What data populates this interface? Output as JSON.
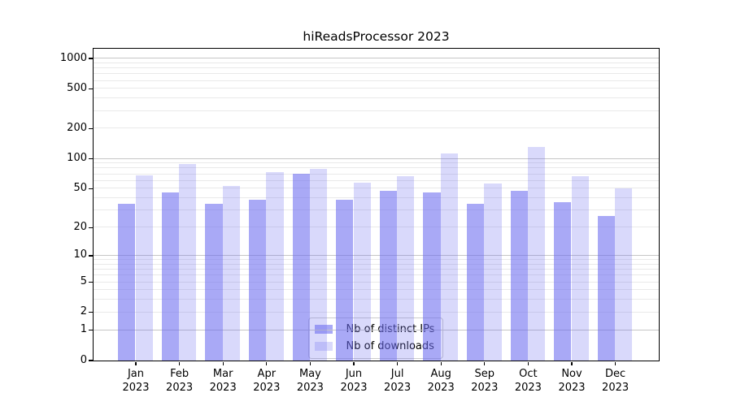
{
  "title": "hiReadsProcessor 2023",
  "chart_data": {
    "type": "bar",
    "title": "hiReadsProcessor 2023",
    "y_scale": "log10(1+y)",
    "categories": [
      "Jan",
      "Feb",
      "Mar",
      "Apr",
      "May",
      "Jun",
      "Jul",
      "Aug",
      "Sep",
      "Oct",
      "Nov",
      "Dec"
    ],
    "x_tick_line2": "2023",
    "series": [
      {
        "name": "Nb of distinct IPs",
        "values": [
          35,
          45,
          35,
          38,
          70,
          38,
          47,
          45,
          35,
          47,
          36,
          26
        ],
        "color": "#6b6bf0",
        "alpha": 0.58,
        "rendered_color": "#a8a8f2"
      },
      {
        "name": "Nb of downloads",
        "values": [
          68,
          88,
          53,
          73,
          78,
          57,
          66,
          112,
          56,
          130,
          66,
          50
        ],
        "color": "#6b6bf0",
        "alpha": 0.26,
        "rendered_color": "#dcdcf9"
      }
    ],
    "y_tick_labels": [
      1000,
      500,
      200,
      100,
      50,
      20,
      10,
      5,
      2,
      1,
      0
    ],
    "ylim": [
      0,
      1250
    ],
    "grid": {
      "major": [
        1,
        10,
        100,
        1000
      ],
      "minor_per_decade": [
        2,
        3,
        4,
        5,
        6,
        7,
        8,
        9
      ]
    },
    "legend_position": "lower center",
    "xlabel": "",
    "ylabel": ""
  },
  "colors": {
    "major_grid": "#c6c6c6",
    "minor_grid": "#e9e9e9",
    "axis": "#000000",
    "background": "#ffffff",
    "legend_border": "#cccccc"
  }
}
